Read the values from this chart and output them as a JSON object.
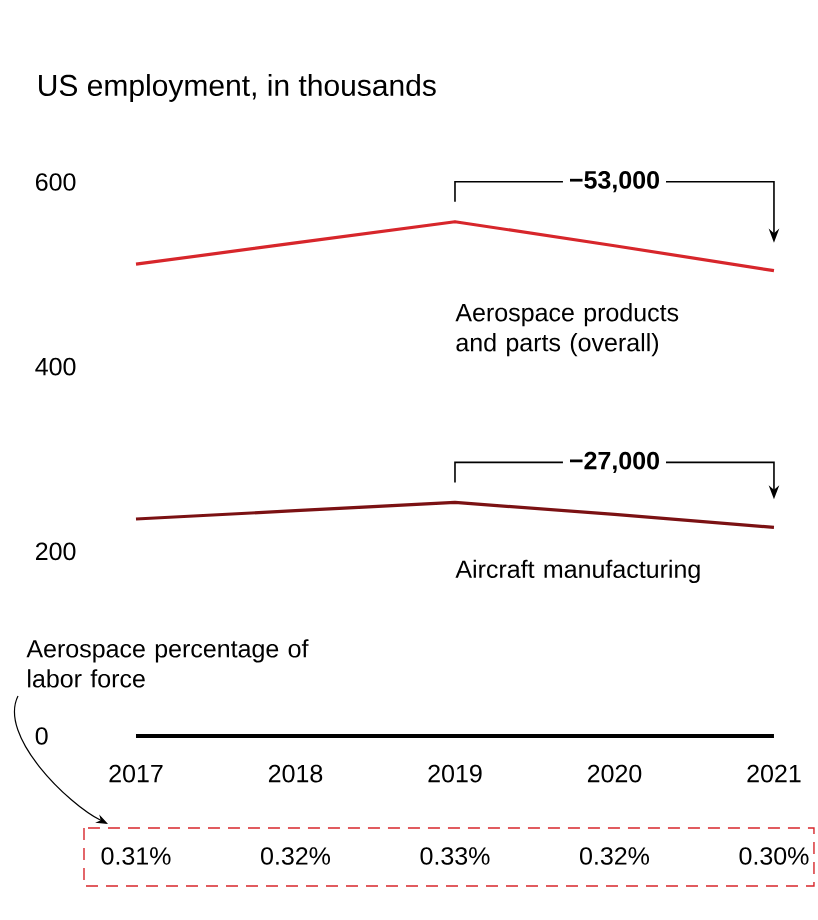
{
  "chart_data": {
    "type": "line",
    "title": "US employment, in thousands",
    "categories": [
      "2017",
      "2018",
      "2019",
      "2020",
      "2021"
    ],
    "series": [
      {
        "name": "Aerospace products and parts (overall)",
        "color": "#d7262b",
        "values": [
          511,
          534,
          557,
          531,
          504
        ]
      },
      {
        "name": "Aircraft manufacturing",
        "color": "#7b1113",
        "values": [
          235,
          244,
          253,
          240,
          226
        ]
      }
    ],
    "ylim": [
      0,
      600
    ],
    "yticks": [
      0,
      200,
      400,
      600
    ],
    "annotations": [
      "−53,000",
      "−27,000",
      "Aerospace percentage of labor force",
      "0.31%",
      "0.32%",
      "0.33%",
      "0.32%",
      "0.30%"
    ]
  }
}
